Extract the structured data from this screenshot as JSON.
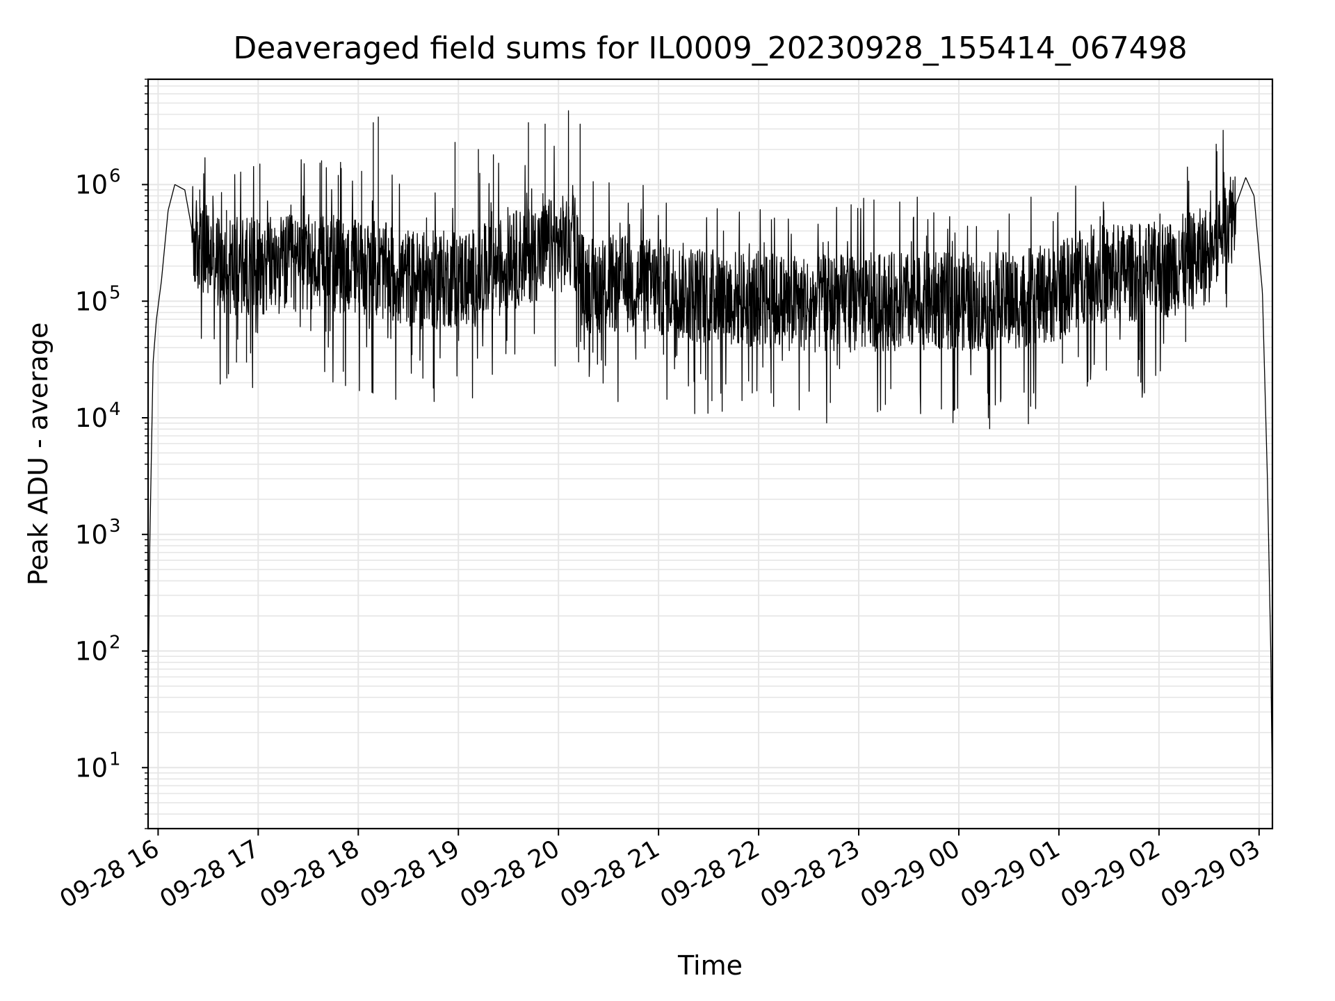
{
  "chart_data": {
    "type": "line",
    "title": "Deaveraged field sums for IL0009_20230928_155414_067498",
    "xlabel": "Time",
    "ylabel": "Peak ADU - average",
    "yscale": "log",
    "xlim": [
      "2023-09-28 15:54",
      "2023-09-29 03:08"
    ],
    "ylim": [
      3,
      8000000
    ],
    "grid": true,
    "grid_color": "#e6e6e6",
    "line_color": "#000000",
    "x_ticks": [
      "2023-09-28 16:00",
      "2023-09-28 17:00",
      "2023-09-28 18:00",
      "2023-09-28 19:00",
      "2023-09-28 20:00",
      "2023-09-28 21:00",
      "2023-09-28 22:00",
      "2023-09-28 23:00",
      "2023-09-29 00:00",
      "2023-09-29 01:00",
      "2023-09-29 02:00",
      "2023-09-29 03:00"
    ],
    "x_tick_labels": [
      "09-28 16",
      "09-28 17",
      "09-28 18",
      "09-28 19",
      "09-28 20",
      "09-28 21",
      "09-28 22",
      "09-28 23",
      "09-29 00",
      "09-29 01",
      "09-29 02",
      "09-29 03"
    ],
    "y_ticks": [
      10,
      100,
      1000,
      10000,
      100000,
      1000000
    ],
    "y_tick_labels": [
      {
        "base": "10",
        "exp": "1"
      },
      {
        "base": "10",
        "exp": "2"
      },
      {
        "base": "10",
        "exp": "3"
      },
      {
        "base": "10",
        "exp": "4"
      },
      {
        "base": "10",
        "exp": "5"
      },
      {
        "base": "10",
        "exp": "6"
      }
    ],
    "series": [
      {
        "envelope": [
          [
            "2023-09-28 15:54",
            25
          ],
          [
            "2023-09-28 15:55",
            800
          ],
          [
            "2023-09-28 15:56",
            5000
          ],
          [
            "2023-09-28 15:57",
            30000
          ],
          [
            "2023-09-28 15:59",
            70000
          ],
          [
            "2023-09-28 16:02",
            150000
          ],
          [
            "2023-09-28 16:06",
            600000
          ],
          [
            "2023-09-28 16:10",
            1000000
          ],
          [
            "2023-09-28 16:16",
            900000
          ],
          [
            "2023-09-28 16:22",
            300000
          ],
          [
            "2023-09-28 16:40",
            200000
          ],
          [
            "2023-09-28 17:30",
            210000
          ],
          [
            "2023-09-28 18:00",
            200000
          ],
          [
            "2023-09-28 18:40",
            150000
          ],
          [
            "2023-09-28 19:10",
            160000
          ],
          [
            "2023-09-28 19:40",
            250000
          ],
          [
            "2023-09-28 20:10",
            330000
          ],
          [
            "2023-09-28 20:15",
            140000
          ],
          [
            "2023-09-28 20:50",
            140000
          ],
          [
            "2023-09-28 21:30",
            110000
          ],
          [
            "2023-09-28 22:30",
            95000
          ],
          [
            "2023-09-28 23:30",
            100000
          ],
          [
            "2023-09-29 00:30",
            100000
          ],
          [
            "2023-09-29 01:00",
            120000
          ],
          [
            "2023-09-29 01:15",
            170000
          ],
          [
            "2023-09-29 02:00",
            180000
          ],
          [
            "2023-09-29 02:30",
            250000
          ],
          [
            "2023-09-29 02:45",
            600000
          ],
          [
            "2023-09-29 02:52",
            1150000
          ],
          [
            "2023-09-29 02:57",
            800000
          ],
          [
            "2023-09-29 03:02",
            120000
          ],
          [
            "2023-09-29 03:05",
            3000
          ],
          [
            "2023-09-29 03:07",
            100
          ],
          [
            "2023-09-29 03:08",
            5
          ]
        ],
        "spikes": [
          [
            "2023-09-28 16:25",
            900000
          ],
          [
            "2023-09-28 16:41",
            600000
          ],
          [
            "2023-09-28 16:47",
            30000
          ],
          [
            "2023-09-28 16:53",
            30000
          ],
          [
            "2023-09-28 17:01",
            1500000
          ],
          [
            "2023-09-28 17:27",
            800000
          ],
          [
            "2023-09-28 17:38",
            1600000
          ],
          [
            "2023-09-28 17:48",
            1200000
          ],
          [
            "2023-09-28 17:51",
            25000
          ],
          [
            "2023-09-28 18:02",
            1300000
          ],
          [
            "2023-09-28 18:09",
            3400000
          ],
          [
            "2023-09-28 18:12",
            3800000
          ],
          [
            "2023-09-28 18:45",
            18000
          ],
          [
            "2023-09-28 18:58",
            2300000
          ],
          [
            "2023-09-28 19:12",
            2000000
          ],
          [
            "2023-09-28 19:21",
            1800000
          ],
          [
            "2023-09-28 19:42",
            3400000
          ],
          [
            "2023-09-28 19:52",
            3300000
          ],
          [
            "2023-09-28 20:06",
            4300000
          ],
          [
            "2023-09-28 20:13",
            3300000
          ],
          [
            "2023-09-28 21:03",
            35000
          ],
          [
            "2023-09-28 21:32",
            14000
          ],
          [
            "2023-09-28 22:09",
            12500
          ],
          [
            "2023-09-28 22:43",
            13500
          ],
          [
            "2023-09-28 23:16",
            13000
          ],
          [
            "2023-09-29 01:27",
            600000
          ],
          [
            "2023-09-29 01:49",
            45000
          ],
          [
            "2023-09-29 02:12",
            400000
          ],
          [
            "2023-09-29 02:16",
            45000
          ]
        ]
      }
    ]
  }
}
